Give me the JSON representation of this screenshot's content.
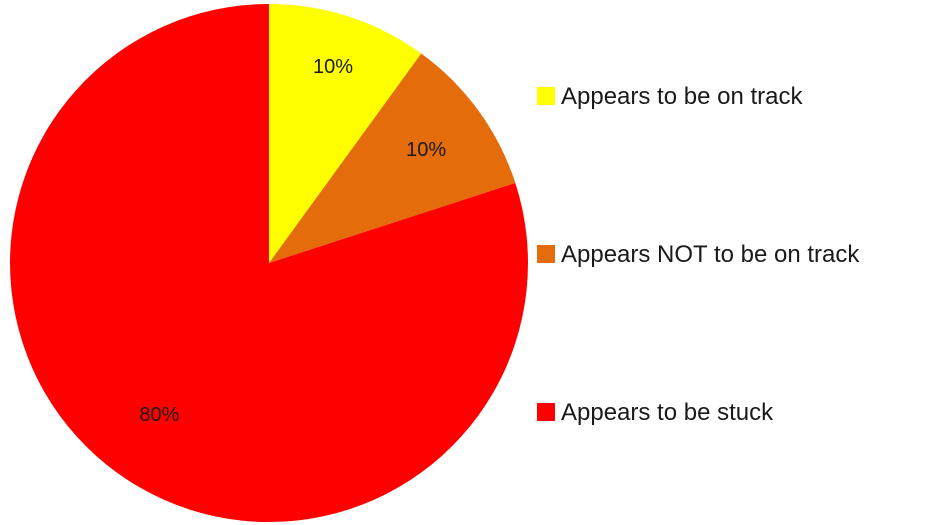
{
  "chart_data": {
    "type": "pie",
    "title": "",
    "legend_position": "right",
    "categories": [
      "Appears to be on track",
      "Appears NOT to be on track",
      "Appears to be stuck"
    ],
    "values": [
      10,
      10,
      80
    ],
    "value_labels": [
      "10%",
      "10%",
      "80%"
    ],
    "colors": [
      "#FFFF00",
      "#E46C0A",
      "#FF0000"
    ]
  }
}
